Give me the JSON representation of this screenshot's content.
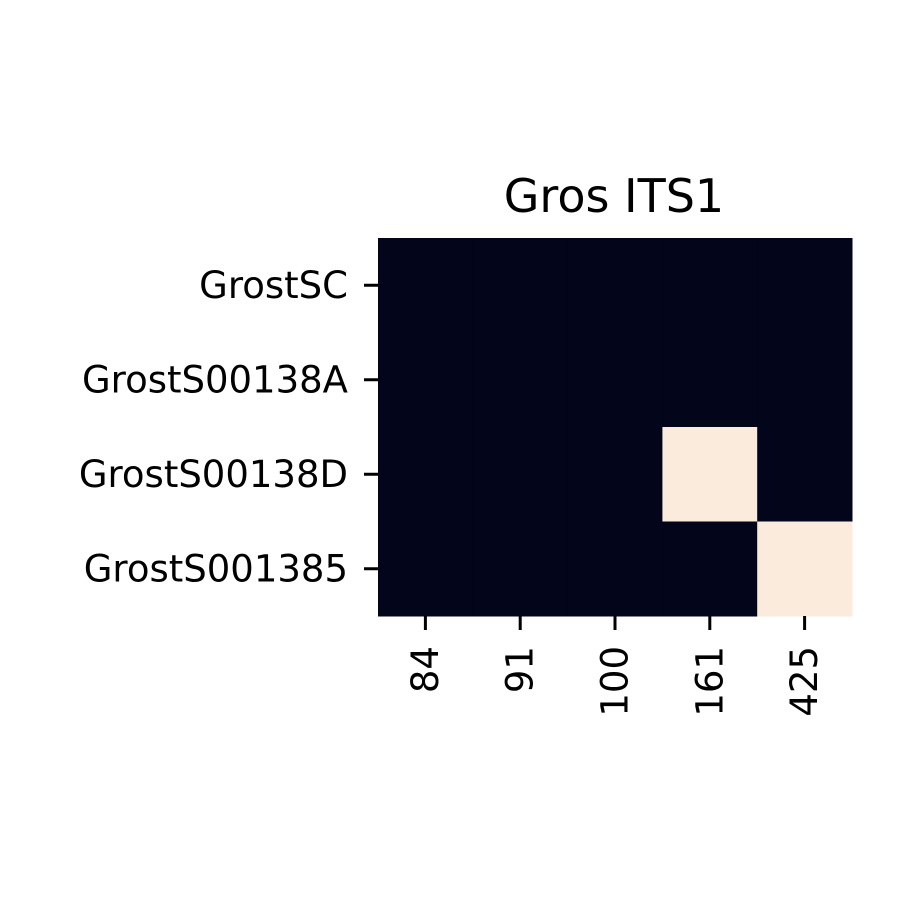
{
  "chart_data": {
    "type": "heatmap",
    "title": "Gros ITS1",
    "xlabel": "",
    "ylabel": "",
    "x_categories": [
      "84",
      "91",
      "100",
      "161",
      "425"
    ],
    "y_categories": [
      "GrostSC",
      "GrostS00138A",
      "GrostS00138D",
      "GrostS001385"
    ],
    "values": [
      [
        0,
        0,
        0,
        0,
        0
      ],
      [
        0,
        0,
        0,
        0,
        0
      ],
      [
        0,
        0,
        0,
        1,
        0
      ],
      [
        0,
        0,
        0,
        0,
        1
      ]
    ],
    "value_range": [
      0,
      1
    ],
    "colormap": {
      "low": "#03051a",
      "high": "#faebdd"
    },
    "colorbar": false,
    "grid": false,
    "x_tick_rotation_deg": 90
  }
}
